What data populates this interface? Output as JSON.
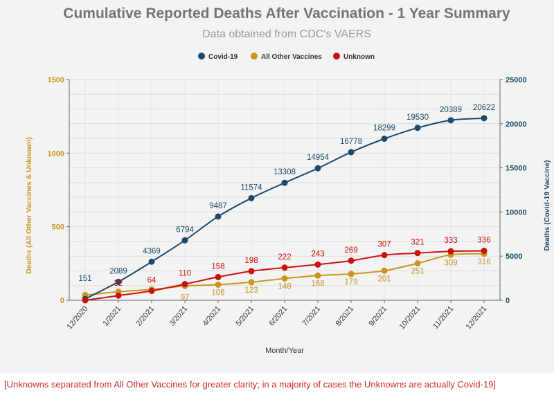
{
  "chart_data": {
    "type": "line",
    "title": "Cumulative Reported Deaths After Vaccination - 1 Year Summary",
    "subtitle": "Data obtained from CDC's VAERS",
    "xlabel": "Month/Year",
    "ylabel_left": "Deaths (All Other Vaccines & Unknown)",
    "ylabel_right": "Deaths (Covid-19 Vaccine)",
    "ylim_left": [
      0,
      1500
    ],
    "yticks_left": [
      "0",
      "500",
      "1000",
      "1500"
    ],
    "ylim_right": [
      0,
      25000
    ],
    "yticks_right": [
      "0",
      "5000",
      "10000",
      "15000",
      "20000",
      "25000"
    ],
    "legend_position": "top",
    "grid": true,
    "categories": [
      "12/2020",
      "1/2021",
      "2/2021",
      "3/2021",
      "4/2021",
      "5/2021",
      "6/2021",
      "7/2021",
      "8/2021",
      "9/2021",
      "10/2021",
      "11/2021",
      "12/2021"
    ],
    "series": [
      {
        "name": "Covid-19",
        "axis": "right",
        "color": "#1b4a6b",
        "values": [
          151,
          2089,
          4369,
          6794,
          9487,
          11574,
          13308,
          14954,
          16778,
          18299,
          19530,
          20389,
          20622
        ],
        "labels": [
          "151",
          "2089",
          "4369",
          "6794",
          "9487",
          "11574",
          "13308",
          "14954",
          "16778",
          "18299",
          "19530",
          "20389",
          "20622"
        ]
      },
      {
        "name": "All Other Vaccines",
        "axis": "left",
        "color": "#c8961e",
        "values": [
          35,
          58,
          74,
          97,
          106,
          123,
          148,
          168,
          179,
          201,
          251,
          309,
          316
        ],
        "labels": [
          "",
          "",
          "",
          "97",
          "106",
          "123",
          "148",
          "168",
          "179",
          "201",
          "251",
          "309",
          "316"
        ]
      },
      {
        "name": "Unknown",
        "axis": "left",
        "color": "#cc1010",
        "values": [
          0,
          32,
          64,
          110,
          158,
          198,
          222,
          243,
          269,
          307,
          321,
          333,
          336
        ],
        "labels": [
          "",
          "32",
          "64",
          "110",
          "158",
          "198",
          "222",
          "243",
          "269",
          "307",
          "321",
          "333",
          "336"
        ]
      }
    ]
  },
  "footnote": "[Unknowns separated from All Other Vaccines for greater clarity; in a majority of cases the Unknowns are actually Covid-19]"
}
